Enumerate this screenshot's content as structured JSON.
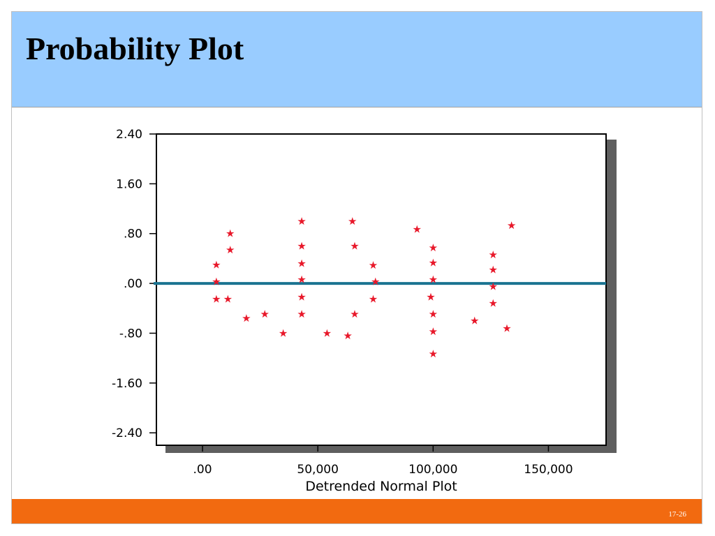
{
  "slide": {
    "title": "Probability Plot",
    "page_number": "17-26"
  },
  "colors": {
    "title_band": "#99ccff",
    "footer_band": "#f26a10",
    "reference_line": "#1a7391",
    "marker": "#e8182a",
    "plot_shadow": "#5f5f5f"
  },
  "chart_data": {
    "type": "scatter",
    "title": "",
    "xlabel": "Detrended Normal Plot",
    "ylabel": "",
    "xlim": [
      -20000,
      175000
    ],
    "ylim": [
      -2.6,
      2.4
    ],
    "x_ticks": [
      0,
      50000,
      100000,
      150000
    ],
    "x_tick_labels": [
      ".00",
      "50,000",
      "100,000",
      "150,000"
    ],
    "y_ticks": [
      2.4,
      1.6,
      0.8,
      0.0,
      -0.8,
      -1.6,
      -2.4
    ],
    "y_tick_labels": [
      "2.40",
      "1.60",
      ".80",
      ".00",
      "-.80",
      "-1.60",
      "-2.40"
    ],
    "reference_line_y": 0.0,
    "grid": false,
    "marker_symbol": "★",
    "series": [
      {
        "points": [
          [
            6000,
            0.3
          ],
          [
            6000,
            0.03
          ],
          [
            6000,
            -0.25
          ],
          [
            12000,
            0.8
          ],
          [
            12000,
            0.54
          ],
          [
            11000,
            -0.25
          ],
          [
            19000,
            -0.56
          ],
          [
            27000,
            -0.49
          ],
          [
            35000,
            -0.8
          ],
          [
            43000,
            1.0
          ],
          [
            43000,
            0.6
          ],
          [
            43000,
            0.32
          ],
          [
            43000,
            0.06
          ],
          [
            43000,
            -0.22
          ],
          [
            43000,
            -0.49
          ],
          [
            54000,
            -0.8
          ],
          [
            63000,
            -0.84
          ],
          [
            65000,
            1.0
          ],
          [
            66000,
            0.6
          ],
          [
            66000,
            -0.49
          ],
          [
            74000,
            0.29
          ],
          [
            75000,
            0.03
          ],
          [
            74000,
            -0.25
          ],
          [
            93000,
            0.87
          ],
          [
            100000,
            0.57
          ],
          [
            100000,
            0.33
          ],
          [
            100000,
            0.06
          ],
          [
            99000,
            -0.22
          ],
          [
            100000,
            -0.49
          ],
          [
            100000,
            -0.77
          ],
          [
            100000,
            -1.13
          ],
          [
            118000,
            -0.6
          ],
          [
            126000,
            0.46
          ],
          [
            126000,
            0.22
          ],
          [
            126000,
            -0.05
          ],
          [
            126000,
            -0.32
          ],
          [
            132000,
            -0.72
          ],
          [
            134000,
            0.93
          ]
        ]
      }
    ]
  }
}
